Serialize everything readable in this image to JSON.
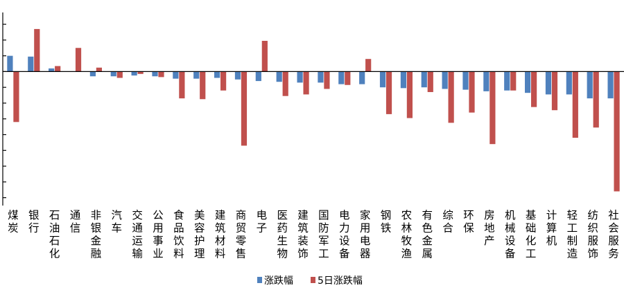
{
  "chart_data": {
    "type": "bar",
    "categories": [
      "煤炭",
      "银行",
      "石油石化",
      "通信",
      "非银金融",
      "汽车",
      "交通运输",
      "公用事业",
      "食品饮料",
      "美容护理",
      "建筑材料",
      "商贸零售",
      "电子",
      "医药生物",
      "建筑装饰",
      "国防军工",
      "电力设备",
      "家用电器",
      "钢铁",
      "农林牧渔",
      "有色金属",
      "综合",
      "环保",
      "房地产",
      "机械设备",
      "基础化工",
      "计算机",
      "轻工制造",
      "纺织服饰",
      "社会服务"
    ],
    "series": [
      {
        "name": "涨跌幅",
        "color": "#4F81BD",
        "values": [
          1.0,
          0.95,
          0.2,
          0.0,
          -0.3,
          -0.3,
          -0.25,
          -0.3,
          -0.45,
          -0.45,
          -0.4,
          -0.5,
          -0.6,
          -0.65,
          -0.7,
          -0.7,
          -0.8,
          -0.8,
          -1.0,
          -1.05,
          -1.0,
          -1.1,
          -1.15,
          -1.25,
          -1.2,
          -1.35,
          -1.45,
          -1.45,
          -1.7,
          -1.7
        ]
      },
      {
        "name": "5日涨跌幅",
        "color": "#C0504D",
        "values": [
          -3.2,
          2.7,
          0.35,
          1.5,
          0.25,
          -0.4,
          -0.15,
          -0.35,
          -1.7,
          -1.75,
          -1.2,
          -4.7,
          1.95,
          -1.55,
          -1.45,
          -1.1,
          -0.85,
          0.8,
          -2.7,
          -2.95,
          -1.3,
          -3.25,
          -2.6,
          -4.6,
          -1.2,
          -2.25,
          -2.45,
          -4.2,
          -3.55,
          -7.6
        ]
      }
    ],
    "ylim": [
      -8.5,
      3.75
    ],
    "y_tick_step": 1.0,
    "grid": false,
    "legend_position": "bottom",
    "axis_labels_shown": false
  }
}
